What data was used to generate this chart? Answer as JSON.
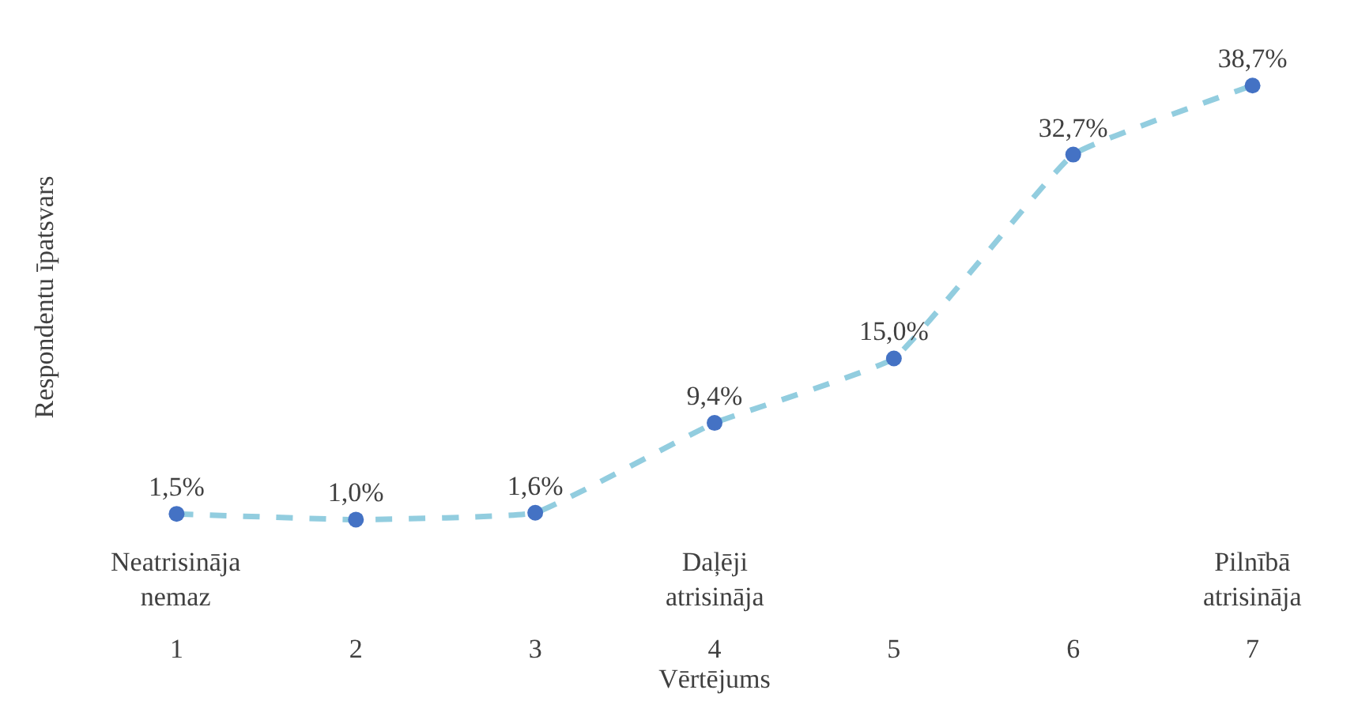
{
  "chart_data": {
    "type": "line",
    "xlabel": "Vērtējums",
    "ylabel": "Respondentu īpatsvars",
    "categories": [
      "1",
      "2",
      "3",
      "4",
      "5",
      "6",
      "7"
    ],
    "series": [
      {
        "color": "#92cddf",
        "values": [
          1.5,
          1.0,
          1.6,
          9.4,
          15.0,
          32.7,
          38.7
        ],
        "value_labels": [
          "1,5%",
          "1,0%",
          "1,6%",
          "9,4%",
          "15,0%",
          "32,7%",
          "38,7%"
        ]
      }
    ],
    "marker": "circle",
    "line_style": "dashed",
    "legend": false,
    "annotations": [
      "Neatrisināja nemaz",
      "Daļēji atrisināja",
      "Pilnībā atrisināja"
    ]
  }
}
